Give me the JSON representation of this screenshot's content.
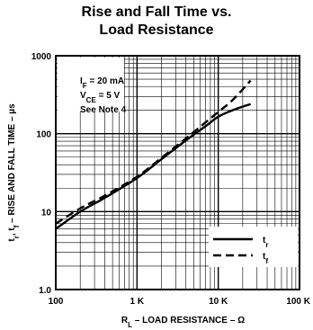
{
  "chart_data": {
    "type": "line",
    "title": [
      "Rise and Fall Time vs.",
      "Load Resistance"
    ],
    "xlabel": {
      "main": "R",
      "sub": "L",
      "rest": " – LOAD RESISTANCE – Ω"
    },
    "ylabel": {
      "p1": "t",
      "s1": "r",
      "p2": ", t",
      "s2": "f",
      "rest": " – RISE AND FALL TIME – µs"
    },
    "xscale": "log",
    "yscale": "log",
    "xlim": [
      100,
      100000
    ],
    "ylim": [
      1,
      1000
    ],
    "x_ticks": [
      {
        "value": 100,
        "label": "100"
      },
      {
        "value": 1000,
        "label": "1 K"
      },
      {
        "value": 10000,
        "label": "10 K"
      },
      {
        "value": 100000,
        "label": "100 K"
      }
    ],
    "y_ticks": [
      {
        "value": 1,
        "label": "1.0"
      },
      {
        "value": 10,
        "label": "10"
      },
      {
        "value": 100,
        "label": "100"
      },
      {
        "value": 1000,
        "label": "1000"
      }
    ],
    "grid": true,
    "conditions": [
      {
        "main": "I",
        "sub": "F",
        "rest": " = 20 mA"
      },
      {
        "main": "V",
        "sub": "CE",
        "rest": " = 5 V"
      },
      {
        "main": "See Note 4",
        "sub": "",
        "rest": ""
      }
    ],
    "legend_position": "bottom-right",
    "series": [
      {
        "name": {
          "main": "t",
          "sub": "r"
        },
        "style": "solid",
        "x": [
          100,
          200,
          400,
          1000,
          2000,
          4000,
          7000,
          10000,
          15000,
          25000
        ],
        "y": [
          6,
          10,
          15,
          27,
          47,
          82,
          125,
          165,
          200,
          240
        ]
      },
      {
        "name": {
          "main": "t",
          "sub": "f"
        },
        "style": "dashed",
        "x": [
          100,
          200,
          400,
          1000,
          2000,
          4000,
          7000,
          10000,
          15000,
          25000
        ],
        "y": [
          7,
          11,
          16,
          28,
          49,
          87,
          140,
          190,
          270,
          480
        ]
      }
    ]
  }
}
